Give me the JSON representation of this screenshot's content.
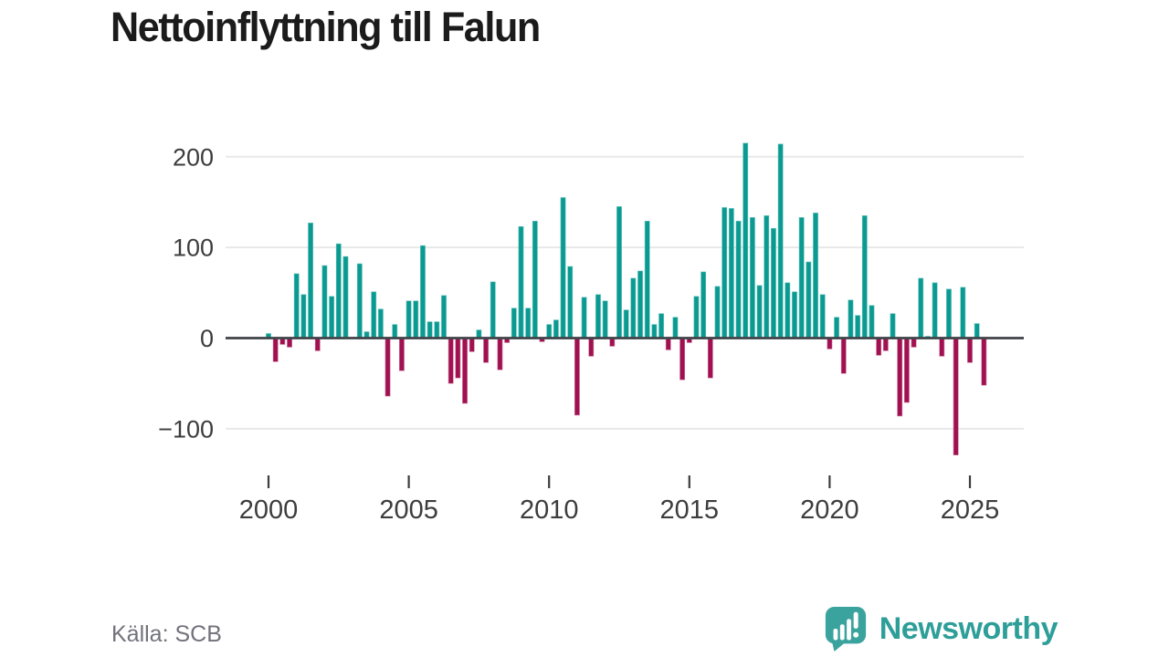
{
  "title": "Nettoinflyttning till Falun",
  "source": "Källa: SCB",
  "brand": {
    "name": "Newsworthy"
  },
  "colors": {
    "positive": "#0b9a91",
    "positive_edge": "#63c3bc",
    "negative": "#a11050",
    "negative_edge": "#c9769a",
    "zero_axis": "#41464b",
    "grid": "#e8e8e8",
    "tick_label": "#3d3d3d",
    "title": "#1b1b1b",
    "source_text": "#72727c",
    "brand_teal": "#2d9e98",
    "logo_bubble": "#3ba39d"
  },
  "chart_data": {
    "type": "bar",
    "title": "Nettoinflyttning till Falun",
    "x_unit": "quarter",
    "start": "2000-Q1",
    "end": "2025-Q3",
    "frequency": "quarterly",
    "x_tick_labels": [
      "2000",
      "2005",
      "2010",
      "2015",
      "2020",
      "2025"
    ],
    "y_ticks": [
      200,
      100,
      0,
      -100
    ],
    "y_tick_labels": [
      "200",
      "100",
      "0",
      "−100"
    ],
    "ylim": [
      -150,
      250
    ],
    "grid": true,
    "legend": "none",
    "values": [
      5,
      -26,
      -7,
      -10,
      71,
      48,
      127,
      -14,
      80,
      46,
      104,
      90,
      0,
      82,
      7,
      51,
      32,
      -64,
      15,
      -36,
      41,
      41,
      102,
      18,
      18,
      47,
      -50,
      -44,
      -72,
      -15,
      9,
      -27,
      62,
      -35,
      -5,
      33,
      123,
      33,
      129,
      -4,
      15,
      20,
      155,
      79,
      -85,
      45,
      -20,
      48,
      41,
      -9,
      145,
      31,
      66,
      74,
      129,
      15,
      27,
      -13,
      23,
      -46,
      -5,
      46,
      73,
      -44,
      57,
      144,
      143,
      129,
      215,
      133,
      58,
      135,
      121,
      214,
      61,
      51,
      133,
      84,
      138,
      48,
      -12,
      23,
      -39,
      42,
      25,
      135,
      36,
      -19,
      -14,
      27,
      -86,
      -71,
      -10,
      66,
      2,
      61,
      -20,
      54,
      -129,
      56,
      -27,
      16,
      -52
    ]
  }
}
